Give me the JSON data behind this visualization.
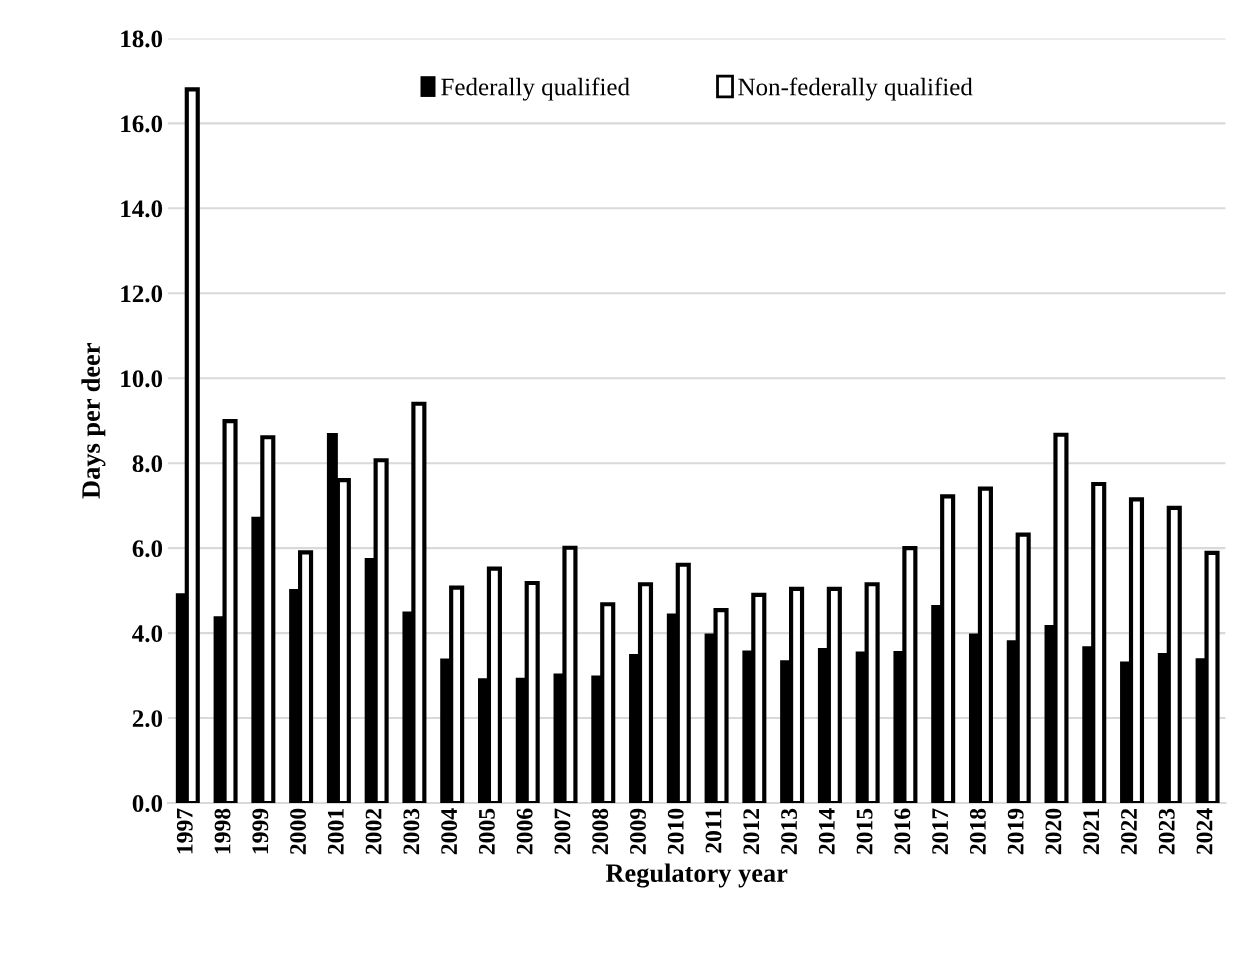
{
  "chart_data": {
    "type": "bar",
    "xlabel": "Regulatory year",
    "ylabel": "Days per deer",
    "categories": [
      "1997",
      "1998",
      "1999",
      "2000",
      "2001",
      "2002",
      "2003",
      "2004",
      "2005",
      "2006",
      "2007",
      "2008",
      "2009",
      "2010",
      "2011",
      "2012",
      "2013",
      "2014",
      "2015",
      "2016",
      "2017",
      "2018",
      "2019",
      "2020",
      "2021",
      "2022",
      "2023",
      "2024"
    ],
    "series": [
      {
        "name": "Federally qualified",
        "color": "#000000",
        "values": [
          4.94,
          4.4,
          6.74,
          5.04,
          8.71,
          5.77,
          4.51,
          3.4,
          2.94,
          2.95,
          3.05,
          3.0,
          3.51,
          4.46,
          3.99,
          3.59,
          3.36,
          3.65,
          3.57,
          3.58,
          4.66,
          3.99,
          3.83,
          4.19,
          3.69,
          3.33,
          3.53,
          3.41
        ]
      },
      {
        "name": "Non-federally qualified",
        "color": "#ffffff",
        "values": [
          16.8,
          8.99,
          8.61,
          5.9,
          7.6,
          8.07,
          9.4,
          5.07,
          5.52,
          5.18,
          6.01,
          4.68,
          5.15,
          5.61,
          4.54,
          4.9,
          5.04,
          5.04,
          5.15,
          6.0,
          7.22,
          7.4,
          6.32,
          8.67,
          7.51,
          7.15,
          6.95,
          5.89
        ]
      }
    ],
    "ylim": [
      0,
      18
    ],
    "yticks": [
      {
        "value": 0,
        "label": "0.0"
      },
      {
        "value": 2,
        "label": "2.0"
      },
      {
        "value": 4,
        "label": "4.0"
      },
      {
        "value": 6,
        "label": "6.0"
      },
      {
        "value": 8,
        "label": "8.0"
      },
      {
        "value": 10,
        "label": "10.0"
      },
      {
        "value": 12,
        "label": "12.0"
      },
      {
        "value": 14,
        "label": "14.0"
      },
      {
        "value": 16,
        "label": "16.0"
      },
      {
        "value": 18,
        "label": "18.0"
      }
    ],
    "grid": "y",
    "legend": "top"
  }
}
